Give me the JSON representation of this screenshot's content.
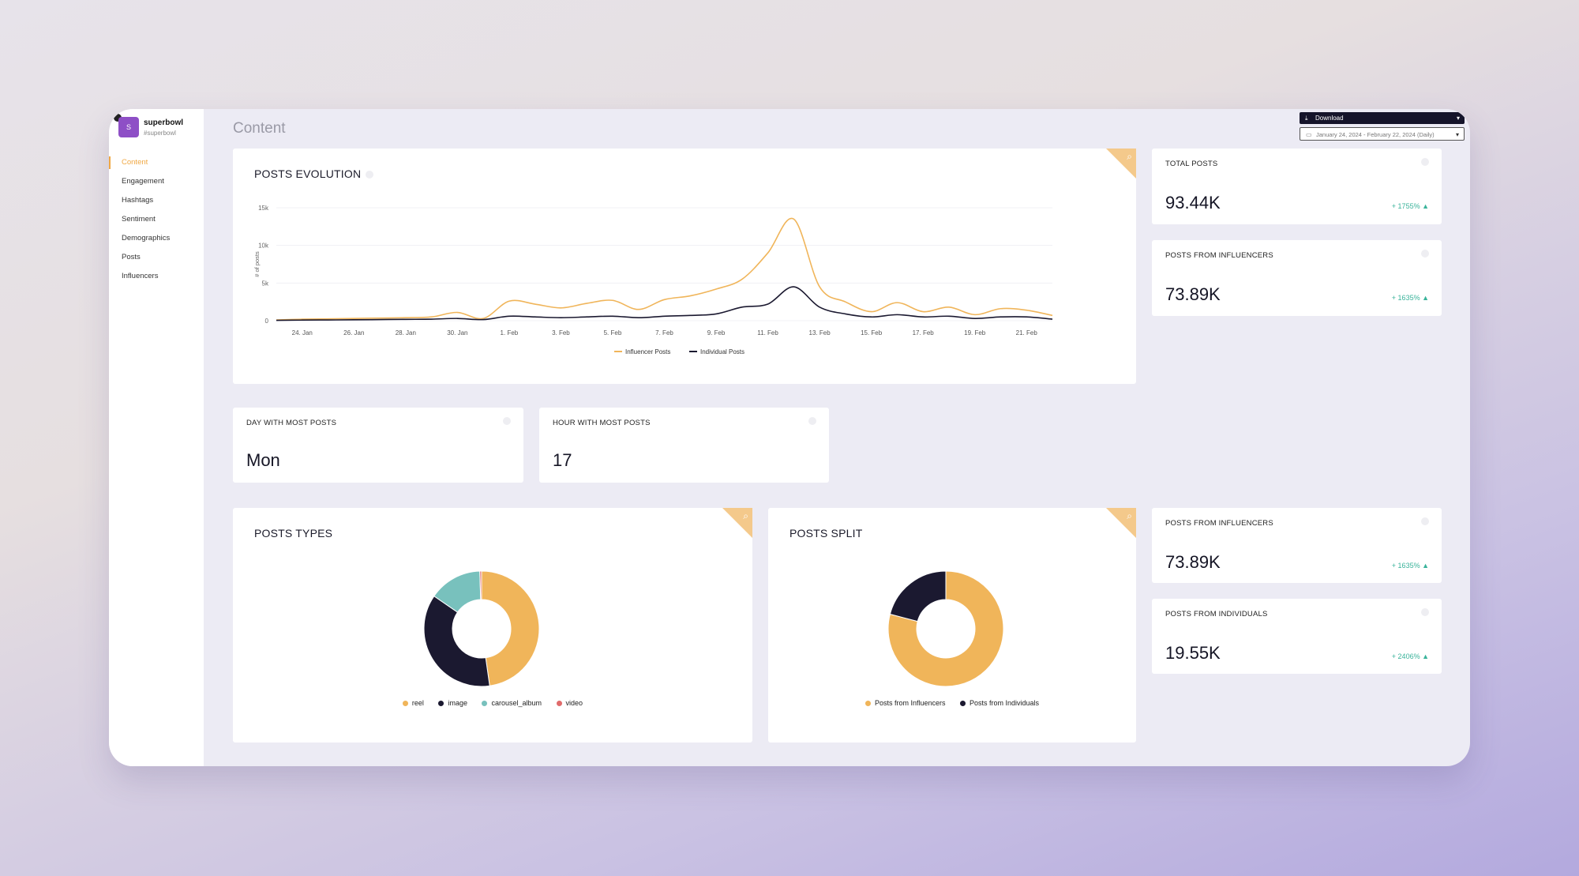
{
  "app": {
    "brand_name": "superbowl",
    "brand_handle": "#superbowl",
    "avatar_letter": "S",
    "page_title": "Content",
    "download_label": "Download",
    "date_range": "January 24, 2024 - February 22, 2024 (Daily)"
  },
  "sidebar": {
    "items": [
      {
        "label": "Content",
        "active": true
      },
      {
        "label": "Engagement"
      },
      {
        "label": "Hashtags"
      },
      {
        "label": "Sentiment"
      },
      {
        "label": "Demographics"
      },
      {
        "label": "Posts"
      },
      {
        "label": "Influencers"
      }
    ]
  },
  "cards": {
    "posts_evolution": {
      "title": "POSTS EVOLUTION"
    },
    "total_posts": {
      "title": "TOTAL POSTS",
      "value": "93.44K",
      "delta": "+ 1755% ▲"
    },
    "posts_from_influencers_top": {
      "title": "POSTS FROM INFLUENCERS",
      "value": "73.89K",
      "delta": "+ 1635% ▲"
    },
    "day_most_posts": {
      "title": "DAY WITH MOST POSTS",
      "value": "Mon"
    },
    "hour_most_posts": {
      "title": "HOUR WITH MOST POSTS",
      "value": "17"
    },
    "posts_types": {
      "title": "POSTS TYPES"
    },
    "posts_split": {
      "title": "POSTS SPLIT"
    },
    "posts_from_influencers": {
      "title": "POSTS FROM INFLUENCERS",
      "value": "73.89K",
      "delta": "+ 1635% ▲"
    },
    "posts_from_individuals": {
      "title": "POSTS FROM INDIVIDUALS",
      "value": "19.55K",
      "delta": "+ 2406% ▲"
    }
  },
  "chart_data": [
    {
      "type": "line",
      "title": "POSTS EVOLUTION",
      "ylabel": "# of posts",
      "ylim": [
        0,
        15000
      ],
      "yticks": [
        "0",
        "5k",
        "10k",
        "15k"
      ],
      "x_ticks": [
        "24. Jan",
        "26. Jan",
        "28. Jan",
        "30. Jan",
        "1. Feb",
        "3. Feb",
        "5. Feb",
        "7. Feb",
        "9. Feb",
        "11. Feb",
        "13. Feb",
        "15. Feb",
        "17. Feb",
        "19. Feb",
        "21. Feb"
      ],
      "x": [
        "23. Jan",
        "24. Jan",
        "25. Jan",
        "26. Jan",
        "27. Jan",
        "28. Jan",
        "29. Jan",
        "30. Jan",
        "31. Jan",
        "1. Feb",
        "2. Feb",
        "3. Feb",
        "4. Feb",
        "5. Feb",
        "6. Feb",
        "7. Feb",
        "8. Feb",
        "9. Feb",
        "10. Feb",
        "11. Feb",
        "12. Feb",
        "13. Feb",
        "14. Feb",
        "15. Feb",
        "16. Feb",
        "17. Feb",
        "18. Feb",
        "19. Feb",
        "20. Feb",
        "21. Feb",
        "22. Feb"
      ],
      "series": [
        {
          "name": "Influencer Posts",
          "color": "#f0b55a",
          "values": [
            100,
            200,
            250,
            300,
            350,
            400,
            500,
            1100,
            300,
            2600,
            2200,
            1700,
            2300,
            2700,
            1500,
            2800,
            3300,
            4200,
            5500,
            9000,
            13500,
            4500,
            2500,
            1200,
            2400,
            1200,
            1800,
            800,
            1600,
            1400,
            700
          ]
        },
        {
          "name": "Individual Posts",
          "color": "#1b1930",
          "values": [
            50,
            80,
            100,
            120,
            150,
            180,
            200,
            300,
            150,
            600,
            500,
            400,
            500,
            600,
            400,
            600,
            700,
            900,
            1800,
            2200,
            4500,
            1800,
            900,
            500,
            800,
            500,
            600,
            300,
            500,
            500,
            200
          ]
        }
      ]
    },
    {
      "type": "pie",
      "title": "POSTS TYPES",
      "categories": [
        "reel",
        "image",
        "carousel_album",
        "video"
      ],
      "values": [
        48,
        37,
        15,
        0.5
      ],
      "colors": [
        "#f0b55a",
        "#1b1930",
        "#78c1bd",
        "#e06b6b"
      ]
    },
    {
      "type": "pie",
      "title": "POSTS SPLIT",
      "categories": [
        "Posts from Influencers",
        "Posts from Individuals"
      ],
      "values": [
        73.89,
        19.55
      ],
      "colors": [
        "#f0b55a",
        "#1b1930"
      ]
    }
  ]
}
